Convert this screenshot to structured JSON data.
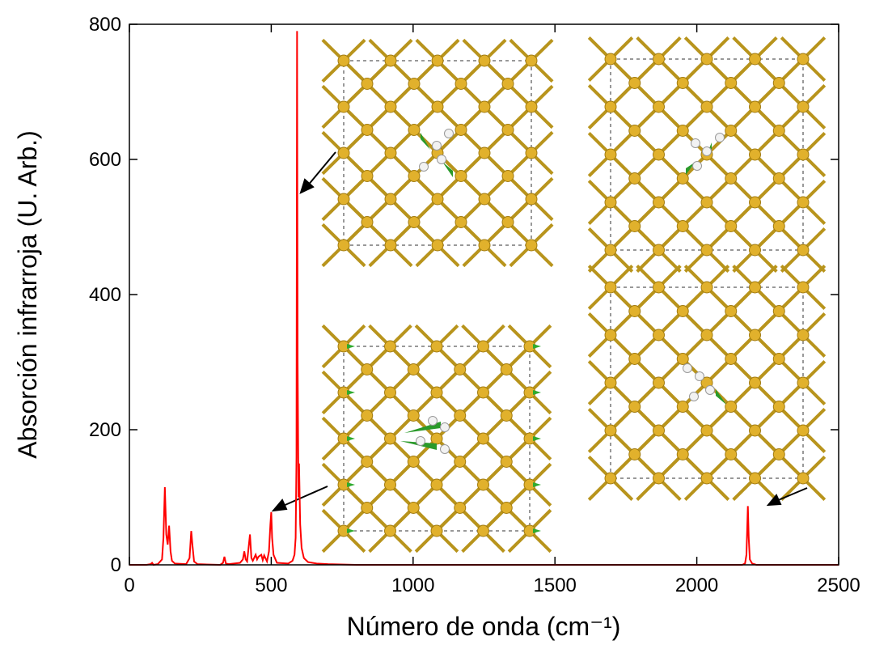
{
  "chart_data": {
    "type": "line",
    "xlabel": "Número de onda (cm⁻¹)",
    "ylabel": "Absorción infrarroja (U. Arb.)",
    "xlim": [
      0,
      2500
    ],
    "xticks": [
      0,
      500,
      1000,
      1500,
      2000,
      2500
    ],
    "ylim": [
      0,
      800
    ],
    "yticks": [
      0,
      200,
      400,
      600,
      800
    ],
    "x": [
      0,
      60,
      75,
      80,
      85,
      100,
      115,
      120,
      125,
      130,
      135,
      140,
      145,
      150,
      160,
      200,
      212,
      218,
      222,
      228,
      240,
      320,
      330,
      335,
      340,
      350,
      390,
      400,
      405,
      410,
      415,
      420,
      425,
      430,
      435,
      445,
      450,
      455,
      465,
      470,
      475,
      485,
      492,
      497,
      500,
      503,
      508,
      520,
      560,
      575,
      582,
      586,
      589,
      591,
      593,
      596,
      598,
      602,
      607,
      615,
      630,
      660,
      700,
      800,
      2100,
      2160,
      2170,
      2175,
      2180,
      2183,
      2187,
      2195,
      2210,
      2300,
      2500
    ],
    "series": [
      {
        "color": "#ff0000",
        "values": [
          0,
          0,
          1,
          3,
          0,
          1,
          8,
          40,
          115,
          45,
          30,
          58,
          20,
          6,
          2,
          1,
          10,
          50,
          30,
          5,
          1,
          0,
          3,
          12,
          2,
          1,
          3,
          8,
          20,
          8,
          5,
          25,
          45,
          10,
          6,
          15,
          8,
          12,
          15,
          7,
          14,
          5,
          20,
          60,
          78,
          40,
          15,
          3,
          2,
          6,
          15,
          40,
          160,
          790,
          300,
          100,
          150,
          60,
          25,
          10,
          4,
          2,
          1,
          0,
          0,
          0,
          2,
          15,
          87,
          40,
          8,
          2,
          0,
          0,
          0
        ]
      }
    ]
  }
}
